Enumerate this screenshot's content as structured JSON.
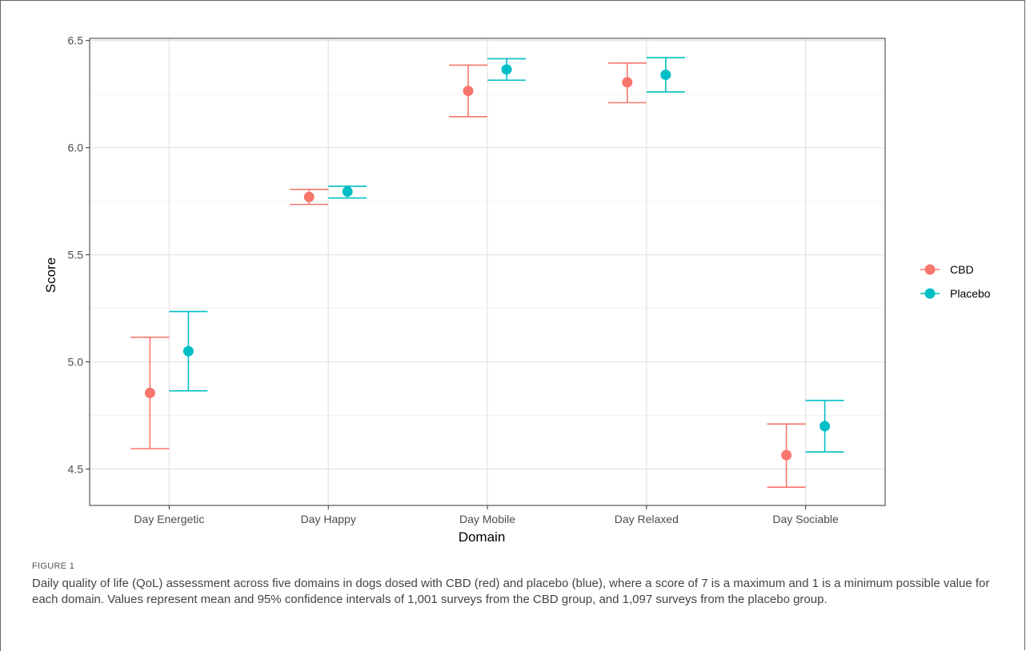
{
  "chart_data": {
    "type": "errorbar",
    "xlabel": "Domain",
    "ylabel": "Score",
    "categories": [
      "Day Energetic",
      "Day Happy",
      "Day Mobile",
      "Day Relaxed",
      "Day Sociable"
    ],
    "ylim": [
      4.33,
      6.51
    ],
    "yticks": [
      4.5,
      5.0,
      5.5,
      6.0,
      6.5
    ],
    "ytick_labels": [
      "4.5",
      "5.0",
      "5.5",
      "6.0",
      "6.5"
    ],
    "grid": true,
    "legend_position": "right",
    "series": [
      {
        "name": "CBD",
        "color": "#F8766D",
        "mean": [
          4.855,
          5.77,
          6.265,
          6.305,
          4.565
        ],
        "lower": [
          4.595,
          5.735,
          6.145,
          6.21,
          4.415
        ],
        "upper": [
          5.115,
          5.805,
          6.385,
          6.395,
          4.71
        ]
      },
      {
        "name": "Placebo",
        "color": "#00BFC4",
        "mean": [
          5.05,
          5.795,
          6.365,
          6.34,
          4.7
        ],
        "lower": [
          4.865,
          5.765,
          6.315,
          6.26,
          4.58
        ],
        "upper": [
          5.235,
          5.82,
          6.415,
          6.42,
          4.82
        ]
      }
    ]
  },
  "caption": {
    "label": "FIGURE 1",
    "text": "Daily quality of life (QoL) assessment across five domains in dogs dosed with CBD (red) and placebo (blue), where a score of 7 is a maximum and 1 is a minimum possible value for each domain. Values represent mean and 95% confidence intervals of 1,001 surveys from the CBD group, and 1,097 surveys from the placebo group."
  }
}
